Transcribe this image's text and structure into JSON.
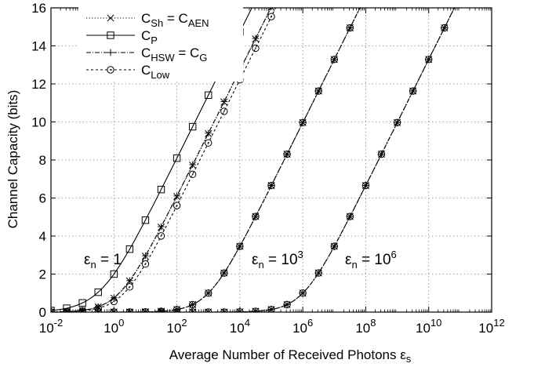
{
  "chart_data": {
    "type": "line",
    "xlabel": "Average Number of Received Photons ε",
    "xlabel_sub": "s",
    "ylabel": "Channel Capacity (bits)",
    "x_scale": "log10",
    "xlim": [
      0.01,
      1000000000000
    ],
    "ylim": [
      0,
      16
    ],
    "grid": true,
    "legend_position": "top-left",
    "x_ticks": [
      {
        "base": "10",
        "exp": "-2"
      },
      {
        "base": "10",
        "exp": "0"
      },
      {
        "base": "10",
        "exp": "2"
      },
      {
        "base": "10",
        "exp": "4"
      },
      {
        "base": "10",
        "exp": "6"
      },
      {
        "base": "10",
        "exp": "8"
      },
      {
        "base": "10",
        "exp": "10"
      },
      {
        "base": "10",
        "exp": "12"
      }
    ],
    "y_ticks": [
      "0",
      "2",
      "4",
      "6",
      "8",
      "10",
      "12",
      "14",
      "16"
    ],
    "legend": [
      {
        "main": "C",
        "sub": "Sh",
        "mid": " = C",
        "sub2": "AEN",
        "style": "dotted",
        "marker": "x"
      },
      {
        "main": "C",
        "sub": "P",
        "mid": "",
        "sub2": "",
        "style": "solid",
        "marker": "square"
      },
      {
        "main": "C",
        "sub": "HSW",
        "mid": " = C",
        "sub2": "G",
        "style": "dashdot",
        "marker": "plus"
      },
      {
        "main": "C",
        "sub": "Low",
        "mid": "",
        "sub2": "",
        "style": "shortdash",
        "marker": "circle"
      }
    ],
    "annotations": [
      {
        "base": "ε",
        "sub": "n",
        "rhs": " = 1",
        "sup": ""
      },
      {
        "base": "ε",
        "sub": "n",
        "rhs": " = 10",
        "sup": "3"
      },
      {
        "base": "ε",
        "sub": "n",
        "rhs": " = 10",
        "sup": "6"
      }
    ],
    "noise_levels": [
      1,
      1000,
      1000000
    ],
    "series": [
      {
        "name": "C_Sh = C_AEN",
        "marker": "x",
        "style": "dotted",
        "shift_with_noise": true
      },
      {
        "name": "C_P",
        "marker": "square",
        "style": "solid",
        "shift_with_noise": false
      },
      {
        "name": "C_HSW = C_G",
        "marker": "plus",
        "style": "dashdot",
        "shift_with_noise": true
      },
      {
        "name": "C_Low",
        "marker": "circle",
        "style": "shortdash",
        "shift_with_noise": true
      }
    ]
  }
}
